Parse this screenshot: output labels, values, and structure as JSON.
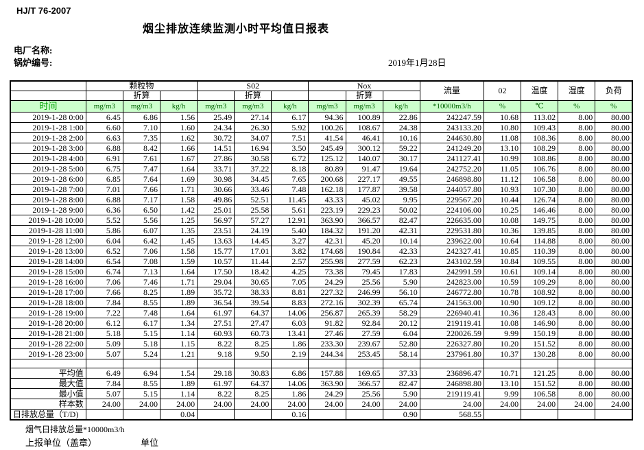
{
  "page": {
    "doc_code": "HJ/T  76-2007",
    "title": "烟尘排放连续监测小时平均值日报表",
    "plant_label": "电厂名称:",
    "boiler_label": "锅炉编号:",
    "date": "2019年1月28日"
  },
  "table": {
    "header": {
      "group_pm": "颗粒物",
      "group_so2": "S02",
      "group_nox": "Nox",
      "conv_label": "折算",
      "time_label": "时间",
      "flow_label": "流量",
      "o2_label": "02",
      "temp_label": "温度",
      "humidity_label": "湿度",
      "load_label": "负荷",
      "units": [
        "mg/m3",
        "mg/m3",
        "kg/h",
        "mg/m3",
        "mg/m3",
        "kg/h",
        "mg/m3",
        "mg/m3",
        "kg/h",
        "*10000m3/h",
        "%",
        "℃",
        "%",
        "%"
      ]
    },
    "rows": [
      [
        "2019-1-28 0:00",
        "6.45",
        "6.86",
        "1.56",
        "25.49",
        "27.14",
        "6.17",
        "94.36",
        "100.89",
        "22.86",
        "242247.59",
        "10.68",
        "113.02",
        "8.00",
        "80.00"
      ],
      [
        "2019-1-28 1:00",
        "6.60",
        "7.10",
        "1.60",
        "24.34",
        "26.30",
        "5.92",
        "100.26",
        "108.67",
        "24.38",
        "243133.20",
        "10.80",
        "109.43",
        "8.00",
        "80.00"
      ],
      [
        "2019-1-28 2:00",
        "6.63",
        "7.35",
        "1.62",
        "30.72",
        "34.07",
        "7.51",
        "41.54",
        "46.41",
        "10.16",
        "244630.80",
        "11.08",
        "108.36",
        "8.00",
        "80.00"
      ],
      [
        "2019-1-28 3:00",
        "6.88",
        "8.42",
        "1.66",
        "14.51",
        "16.94",
        "3.50",
        "245.49",
        "300.12",
        "59.22",
        "241249.20",
        "13.10",
        "108.29",
        "8.00",
        "80.00"
      ],
      [
        "2019-1-28 4:00",
        "6.91",
        "7.61",
        "1.67",
        "27.86",
        "30.58",
        "6.72",
        "125.12",
        "140.07",
        "30.17",
        "241127.41",
        "10.99",
        "108.86",
        "8.00",
        "80.00"
      ],
      [
        "2019-1-28 5:00",
        "6.75",
        "7.47",
        "1.64",
        "33.71",
        "37.22",
        "8.18",
        "80.89",
        "91.47",
        "19.64",
        "242752.20",
        "11.05",
        "106.76",
        "8.00",
        "80.00"
      ],
      [
        "2019-1-28 6:00",
        "6.85",
        "7.64",
        "1.69",
        "30.98",
        "34.45",
        "7.65",
        "200.68",
        "227.17",
        "49.55",
        "246898.80",
        "11.12",
        "106.58",
        "8.00",
        "80.00"
      ],
      [
        "2019-1-28 7:00",
        "7.01",
        "7.66",
        "1.71",
        "30.66",
        "33.46",
        "7.48",
        "162.18",
        "177.87",
        "39.58",
        "244057.80",
        "10.93",
        "107.30",
        "8.00",
        "80.00"
      ],
      [
        "2019-1-28 8:00",
        "6.88",
        "7.17",
        "1.58",
        "49.86",
        "52.51",
        "11.45",
        "43.33",
        "45.02",
        "9.95",
        "229567.20",
        "10.44",
        "126.74",
        "8.00",
        "80.00"
      ],
      [
        "2019-1-28 9:00",
        "6.36",
        "6.50",
        "1.42",
        "25.01",
        "25.58",
        "5.61",
        "223.19",
        "229.23",
        "50.02",
        "224106.00",
        "10.25",
        "146.46",
        "8.00",
        "80.00"
      ],
      [
        "2019-1-28 10:00",
        "5.52",
        "5.56",
        "1.25",
        "56.97",
        "57.27",
        "12.91",
        "363.90",
        "366.57",
        "82.47",
        "226635.00",
        "10.08",
        "149.75",
        "8.00",
        "80.00"
      ],
      [
        "2019-1-28 11:00",
        "5.86",
        "6.07",
        "1.35",
        "23.51",
        "24.19",
        "5.40",
        "184.32",
        "191.20",
        "42.31",
        "229531.80",
        "10.36",
        "139.85",
        "8.00",
        "80.00"
      ],
      [
        "2019-1-28 12:00",
        "6.04",
        "6.42",
        "1.45",
        "13.63",
        "14.45",
        "3.27",
        "42.31",
        "45.20",
        "10.14",
        "239622.00",
        "10.64",
        "114.88",
        "8.00",
        "80.00"
      ],
      [
        "2019-1-28 13:00",
        "6.52",
        "7.06",
        "1.58",
        "15.77",
        "17.01",
        "3.82",
        "174.68",
        "190.84",
        "42.33",
        "242327.41",
        "10.85",
        "110.39",
        "8.00",
        "80.00"
      ],
      [
        "2019-1-28 14:00",
        "6.54",
        "7.08",
        "1.59",
        "10.57",
        "11.44",
        "2.57",
        "255.98",
        "277.59",
        "62.23",
        "243102.59",
        "10.84",
        "109.55",
        "8.00",
        "80.00"
      ],
      [
        "2019-1-28 15:00",
        "6.74",
        "7.13",
        "1.64",
        "17.50",
        "18.42",
        "4.25",
        "73.38",
        "79.45",
        "17.83",
        "242991.59",
        "10.61",
        "109.14",
        "8.00",
        "80.00"
      ],
      [
        "2019-1-28 16:00",
        "7.06",
        "7.46",
        "1.71",
        "29.04",
        "30.65",
        "7.05",
        "24.29",
        "25.56",
        "5.90",
        "242823.00",
        "10.59",
        "109.29",
        "8.00",
        "80.00"
      ],
      [
        "2019-1-28 17:00",
        "7.66",
        "8.25",
        "1.89",
        "35.72",
        "38.33",
        "8.81",
        "227.32",
        "246.99",
        "56.10",
        "246772.80",
        "10.78",
        "108.92",
        "8.00",
        "80.00"
      ],
      [
        "2019-1-28 18:00",
        "7.84",
        "8.55",
        "1.89",
        "36.54",
        "39.54",
        "8.83",
        "272.16",
        "302.39",
        "65.74",
        "241563.00",
        "10.90",
        "109.12",
        "8.00",
        "80.00"
      ],
      [
        "2019-1-28 19:00",
        "7.22",
        "7.48",
        "1.64",
        "61.97",
        "64.37",
        "14.06",
        "256.87",
        "265.39",
        "58.29",
        "226940.41",
        "10.36",
        "128.43",
        "8.00",
        "80.00"
      ],
      [
        "2019-1-28 20:00",
        "6.12",
        "6.17",
        "1.34",
        "27.51",
        "27.47",
        "6.03",
        "91.82",
        "92.84",
        "20.12",
        "219119.41",
        "10.08",
        "146.90",
        "8.00",
        "80.00"
      ],
      [
        "2019-1-28 21:00",
        "5.18",
        "5.15",
        "1.14",
        "60.93",
        "60.73",
        "13.41",
        "27.46",
        "27.59",
        "6.04",
        "220026.59",
        "9.99",
        "150.19",
        "8.00",
        "80.00"
      ],
      [
        "2019-1-28 22:00",
        "5.09",
        "5.18",
        "1.15",
        "8.22",
        "8.25",
        "1.86",
        "233.30",
        "239.67",
        "52.80",
        "226327.80",
        "10.20",
        "151.52",
        "8.00",
        "80.00"
      ],
      [
        "2019-1-28 23:00",
        "5.07",
        "5.24",
        "1.21",
        "9.18",
        "9.50",
        "2.19",
        "244.34",
        "253.45",
        "58.14",
        "237961.80",
        "10.37",
        "130.28",
        "8.00",
        "80.00"
      ]
    ],
    "summary_rows": [
      [
        "平均值",
        "6.49",
        "6.94",
        "1.54",
        "29.18",
        "30.83",
        "6.86",
        "157.88",
        "169.65",
        "37.33",
        "236896.47",
        "10.71",
        "121.25",
        "8.00",
        "80.00"
      ],
      [
        "最大值",
        "7.84",
        "8.55",
        "1.89",
        "61.97",
        "64.37",
        "14.06",
        "363.90",
        "366.57",
        "82.47",
        "246898.80",
        "13.10",
        "151.52",
        "8.00",
        "80.00"
      ],
      [
        "最小值",
        "5.07",
        "5.15",
        "1.14",
        "8.22",
        "8.25",
        "1.86",
        "24.29",
        "25.56",
        "5.90",
        "219119.41",
        "9.99",
        "106.58",
        "8.00",
        "80.00"
      ],
      [
        "样本数",
        "24.00",
        "24.00",
        "24.00",
        "24.00",
        "24.00",
        "24.00",
        "24.00",
        "24.00",
        "24.00",
        "24.00",
        "24.00",
        "24.00",
        "24.00",
        "24.00"
      ],
      [
        "日排放总量（T/D)",
        "",
        "",
        "0.04",
        "",
        "",
        "0.16",
        "",
        "",
        "0.90",
        "568.55",
        "",
        "",
        "",
        ""
      ]
    ]
  },
  "footer": {
    "flow_note": "烟气日排放总量*10000m3/h",
    "report_unit_label": "上报单位（盖章）",
    "unit_label": "单位"
  }
}
